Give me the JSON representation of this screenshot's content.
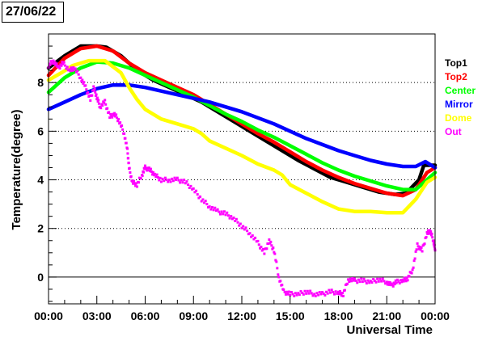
{
  "date_label": "27/06/22",
  "chart_data": {
    "type": "line",
    "title": "",
    "xlabel": "Universal Time",
    "ylabel": "Temperature(degree)",
    "xlim": [
      0,
      24
    ],
    "ylim": [
      -1.1,
      10
    ],
    "x_ticks": [
      "00:00",
      "03:00",
      "06:00",
      "09:00",
      "12:00",
      "15:00",
      "18:00",
      "21:00",
      "00:00"
    ],
    "y_ticks": [
      0,
      2,
      4,
      6,
      8
    ],
    "grid": "horizontal dotted",
    "legend_placement": "right",
    "zero_line": true,
    "series": [
      {
        "name": "Top1",
        "color": "#000000",
        "style": "band",
        "points": [
          [
            0,
            8.6
          ],
          [
            1,
            9.1
          ],
          [
            2,
            9.5
          ],
          [
            3,
            9.5
          ],
          [
            3.6,
            9.45
          ],
          [
            4.5,
            9.1
          ],
          [
            5.5,
            8.5
          ],
          [
            6.5,
            8.1
          ],
          [
            7.5,
            7.8
          ],
          [
            8.5,
            7.5
          ],
          [
            9.5,
            7.2
          ],
          [
            10.5,
            6.8
          ],
          [
            11.5,
            6.4
          ],
          [
            12.5,
            6.0
          ],
          [
            13.5,
            5.6
          ],
          [
            14.5,
            5.2
          ],
          [
            15.5,
            4.8
          ],
          [
            16.5,
            4.45
          ],
          [
            17.5,
            4.1
          ],
          [
            18.5,
            3.9
          ],
          [
            19.5,
            3.7
          ],
          [
            20.5,
            3.5
          ],
          [
            21.5,
            3.4
          ],
          [
            22.2,
            3.45
          ],
          [
            23,
            4.0
          ],
          [
            23.3,
            4.6
          ],
          [
            24,
            4.6
          ]
        ]
      },
      {
        "name": "Top2",
        "color": "#ff0000",
        "style": "band",
        "points": [
          [
            0,
            8.3
          ],
          [
            1,
            9.0
          ],
          [
            2,
            9.4
          ],
          [
            3,
            9.5
          ],
          [
            4,
            9.3
          ],
          [
            5,
            8.8
          ],
          [
            6,
            8.4
          ],
          [
            7,
            8.1
          ],
          [
            8,
            7.8
          ],
          [
            9,
            7.5
          ],
          [
            10,
            7.1
          ],
          [
            11,
            6.7
          ],
          [
            12,
            6.3
          ],
          [
            13,
            5.9
          ],
          [
            14,
            5.55
          ],
          [
            15,
            5.15
          ],
          [
            16,
            4.75
          ],
          [
            17,
            4.4
          ],
          [
            18,
            4.1
          ],
          [
            19,
            3.85
          ],
          [
            20,
            3.65
          ],
          [
            21,
            3.45
          ],
          [
            22,
            3.35
          ],
          [
            22.8,
            3.6
          ],
          [
            23.5,
            4.3
          ],
          [
            24,
            4.5
          ]
        ]
      },
      {
        "name": "Center",
        "color": "#00ff00",
        "style": "band",
        "points": [
          [
            0,
            7.6
          ],
          [
            1,
            8.2
          ],
          [
            2,
            8.6
          ],
          [
            3,
            8.85
          ],
          [
            4,
            8.8
          ],
          [
            5,
            8.6
          ],
          [
            6,
            8.3
          ],
          [
            7,
            8.0
          ],
          [
            8,
            7.7
          ],
          [
            9,
            7.4
          ],
          [
            10,
            7.05
          ],
          [
            11,
            6.7
          ],
          [
            12,
            6.4
          ],
          [
            13,
            6.05
          ],
          [
            14,
            5.75
          ],
          [
            15,
            5.4
          ],
          [
            16,
            5.05
          ],
          [
            17,
            4.7
          ],
          [
            18,
            4.4
          ],
          [
            19,
            4.15
          ],
          [
            20,
            3.95
          ],
          [
            21,
            3.75
          ],
          [
            22,
            3.6
          ],
          [
            22.8,
            3.6
          ],
          [
            23.5,
            4.0
          ],
          [
            24,
            4.3
          ]
        ]
      },
      {
        "name": "Mirror",
        "color": "#0000ff",
        "style": "band",
        "points": [
          [
            0,
            6.9
          ],
          [
            1,
            7.2
          ],
          [
            2,
            7.5
          ],
          [
            3,
            7.75
          ],
          [
            4,
            7.9
          ],
          [
            5,
            7.9
          ],
          [
            6,
            7.8
          ],
          [
            7,
            7.65
          ],
          [
            8,
            7.5
          ],
          [
            9,
            7.35
          ],
          [
            10,
            7.2
          ],
          [
            11,
            7.0
          ],
          [
            12,
            6.8
          ],
          [
            13,
            6.55
          ],
          [
            14,
            6.3
          ],
          [
            15,
            6.0
          ],
          [
            16,
            5.7
          ],
          [
            17,
            5.45
          ],
          [
            18,
            5.2
          ],
          [
            19,
            5.0
          ],
          [
            20,
            4.8
          ],
          [
            21,
            4.65
          ],
          [
            22,
            4.55
          ],
          [
            22.8,
            4.55
          ],
          [
            23.4,
            4.75
          ],
          [
            24,
            4.5
          ]
        ]
      },
      {
        "name": "Dome",
        "color": "#ffff00",
        "style": "band",
        "points": [
          [
            0,
            8.1
          ],
          [
            0.8,
            8.4
          ],
          [
            1.5,
            8.7
          ],
          [
            2.5,
            8.9
          ],
          [
            3.5,
            8.9
          ],
          [
            4.5,
            8.4
          ],
          [
            5,
            7.8
          ],
          [
            5.5,
            7.3
          ],
          [
            6,
            6.9
          ],
          [
            7,
            6.5
          ],
          [
            8,
            6.3
          ],
          [
            9,
            6.1
          ],
          [
            9.5,
            5.9
          ],
          [
            10,
            5.6
          ],
          [
            11,
            5.3
          ],
          [
            12,
            5.0
          ],
          [
            13,
            4.65
          ],
          [
            14,
            4.4
          ],
          [
            14.5,
            4.2
          ],
          [
            15,
            3.8
          ],
          [
            16,
            3.45
          ],
          [
            17,
            3.1
          ],
          [
            18,
            2.8
          ],
          [
            19,
            2.7
          ],
          [
            20,
            2.7
          ],
          [
            21,
            2.65
          ],
          [
            22,
            2.65
          ],
          [
            22.8,
            3.2
          ],
          [
            23.5,
            3.9
          ],
          [
            24,
            4.1
          ]
        ]
      },
      {
        "name": "Out",
        "color": "#ff00ff",
        "style": "scatter",
        "points": [
          [
            0,
            8.7
          ],
          [
            0.3,
            8.9
          ],
          [
            0.6,
            8.6
          ],
          [
            0.9,
            8.8
          ],
          [
            1.3,
            8.5
          ],
          [
            1.6,
            8.6
          ],
          [
            2.0,
            8.2
          ],
          [
            2.3,
            7.8
          ],
          [
            2.6,
            7.3
          ],
          [
            2.8,
            7.8
          ],
          [
            3.0,
            7.4
          ],
          [
            3.2,
            7.0
          ],
          [
            3.5,
            7.2
          ],
          [
            3.8,
            6.6
          ],
          [
            4.1,
            6.7
          ],
          [
            4.4,
            6.4
          ],
          [
            4.7,
            5.9
          ],
          [
            4.9,
            5.2
          ],
          [
            5.0,
            4.5
          ],
          [
            5.2,
            3.9
          ],
          [
            5.5,
            3.8
          ],
          [
            5.8,
            4.2
          ],
          [
            6.0,
            4.5
          ],
          [
            6.3,
            4.4
          ],
          [
            6.6,
            4.2
          ],
          [
            7.0,
            4.0
          ],
          [
            7.5,
            4.0
          ],
          [
            8.0,
            4.0
          ],
          [
            8.5,
            3.9
          ],
          [
            9.0,
            3.6
          ],
          [
            9.5,
            3.2
          ],
          [
            10.0,
            2.9
          ],
          [
            10.5,
            2.7
          ],
          [
            11.0,
            2.6
          ],
          [
            11.5,
            2.4
          ],
          [
            12.0,
            2.1
          ],
          [
            12.5,
            1.8
          ],
          [
            13.0,
            1.4
          ],
          [
            13.4,
            1.0
          ],
          [
            13.7,
            1.5
          ],
          [
            14.0,
            1.1
          ],
          [
            14.3,
            0.0
          ],
          [
            14.6,
            -0.6
          ],
          [
            15.0,
            -0.7
          ],
          [
            15.5,
            -0.7
          ],
          [
            16.0,
            -0.6
          ],
          [
            16.5,
            -0.7
          ],
          [
            17.0,
            -0.7
          ],
          [
            17.5,
            -0.6
          ],
          [
            18.0,
            -0.65
          ],
          [
            18.3,
            -0.7
          ],
          [
            18.6,
            -0.1
          ],
          [
            19.0,
            -0.15
          ],
          [
            19.5,
            -0.15
          ],
          [
            20.0,
            -0.2
          ],
          [
            20.5,
            -0.1
          ],
          [
            21.0,
            -0.2
          ],
          [
            21.3,
            -0.35
          ],
          [
            21.6,
            -0.2
          ],
          [
            22.0,
            -0.15
          ],
          [
            22.3,
            -0.05
          ],
          [
            22.6,
            0.3
          ],
          [
            22.9,
            1.3
          ],
          [
            23.2,
            1.1
          ],
          [
            23.5,
            1.8
          ],
          [
            23.7,
            1.9
          ],
          [
            23.9,
            1.5
          ],
          [
            24.0,
            1.1
          ]
        ]
      }
    ]
  }
}
